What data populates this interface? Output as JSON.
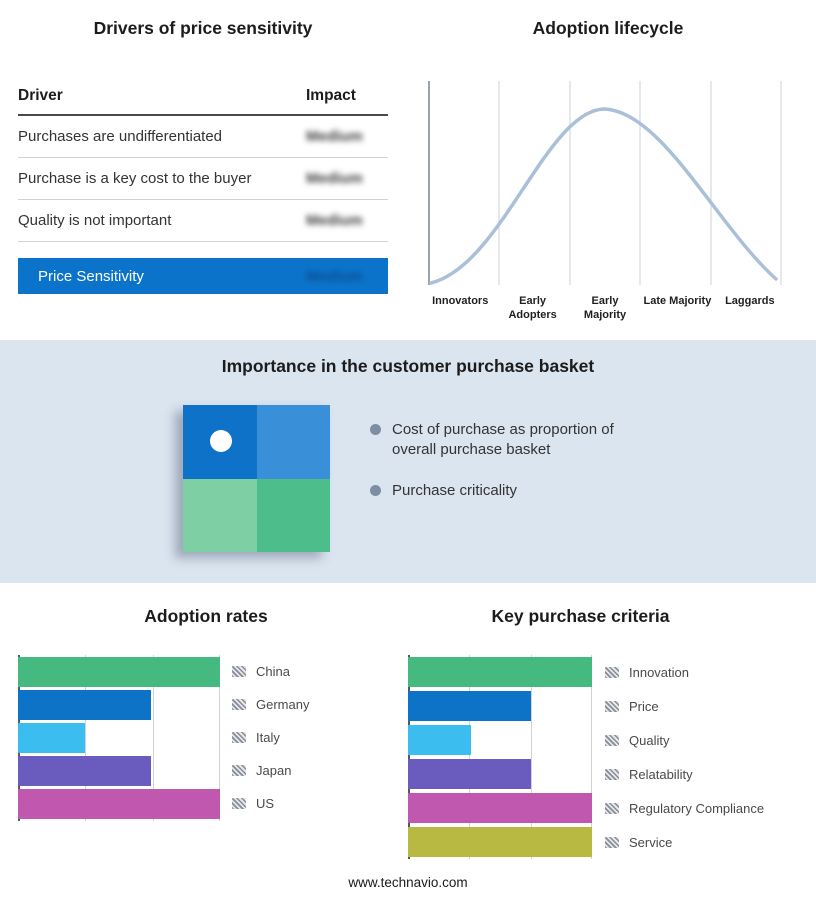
{
  "colors": {
    "accent_blue": "#0b74ca",
    "band_background": "#dbe5f0",
    "lifecycle_curve": "#aabfd8"
  },
  "drivers": {
    "title": "Drivers of price sensitivity",
    "columns": {
      "driver": "Driver",
      "impact": "Impact"
    },
    "rows": [
      {
        "label": "Purchases are undifferentiated",
        "impact": "Medium"
      },
      {
        "label": "Purchase is a key cost to the buyer",
        "impact": "Medium"
      },
      {
        "label": "Quality is not important",
        "impact": "Medium"
      }
    ],
    "summary": {
      "label": "Price Sensitivity",
      "impact": "Medium"
    }
  },
  "basket": {
    "title": "Importance in the customer purchase basket",
    "bullets": [
      "Cost of purchase as proportion of overall purchase basket",
      "Purchase criticality"
    ],
    "quadrant": {
      "colors": [
        "#0d72c8",
        "#3a8fd9",
        "#7ed0a4",
        "#4cbd8b"
      ]
    }
  },
  "footer": {
    "url": "www.technavio.com"
  },
  "chart_data": [
    {
      "type": "line",
      "title": "Adoption lifecycle",
      "categories": [
        "Innovators",
        "Early Adopters",
        "Early Majority",
        "Late Majority",
        "Laggards"
      ],
      "description": "Bell-shaped adoption curve peaking over the Early Majority stage; vertical gridlines separate the five stages",
      "legend_position": "none",
      "grid": "vertical stage separators"
    },
    {
      "type": "bar",
      "title": "Adoption rates",
      "orientation": "horizontal",
      "categories": [
        "China",
        "Germany",
        "Italy",
        "Japan",
        "US"
      ],
      "values": [
        100,
        66,
        33,
        66,
        100
      ],
      "units": "% of axis width (estimated from gridlines at thirds)",
      "colors": [
        "#45b97f",
        "#0d73c6",
        "#3cbdf0",
        "#6a5bbf",
        "#c158b0"
      ],
      "xlim": [
        0,
        100
      ],
      "grid": "vertical lines at 0, 33, 66, 100",
      "legend_position": "right"
    },
    {
      "type": "bar",
      "title": "Key purchase criteria",
      "orientation": "horizontal",
      "categories": [
        "Innovation",
        "Price",
        "Quality",
        "Relatability",
        "Regulatory Compliance",
        "Service"
      ],
      "values": [
        100,
        67,
        34,
        67,
        100,
        100
      ],
      "units": "% of axis width (estimated from gridlines at thirds)",
      "colors": [
        "#45b97f",
        "#0d73c6",
        "#3cbdf0",
        "#6a5bbf",
        "#c158b0",
        "#b8b943"
      ],
      "xlim": [
        0,
        100
      ],
      "grid": "vertical lines at 0, 33, 66, 100",
      "legend_position": "right"
    }
  ]
}
